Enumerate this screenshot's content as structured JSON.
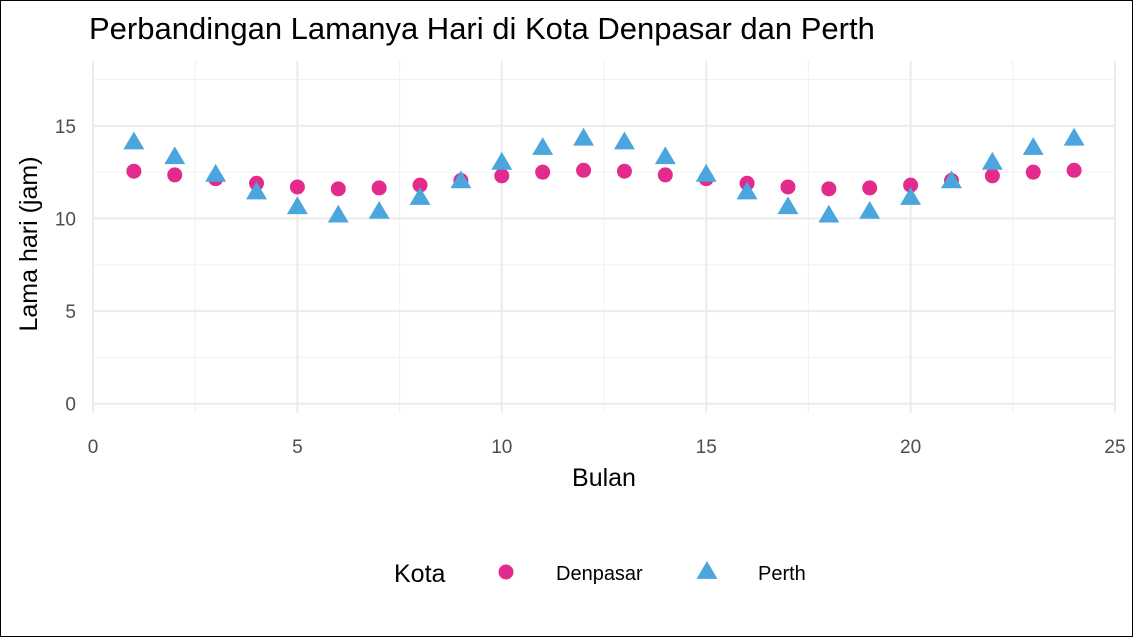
{
  "chart_data": {
    "type": "scatter",
    "title": "Perbandingan Lamanya Hari di Kota Denpasar dan Perth",
    "xlabel": "Bulan",
    "ylabel": "Lama hari (jam)",
    "xlim": [
      0,
      25
    ],
    "ylim": [
      -0.5,
      18.5
    ],
    "x_ticks": [
      0,
      5,
      10,
      15,
      20,
      25
    ],
    "y_ticks": [
      0,
      5,
      10,
      15
    ],
    "grid": true,
    "legend": {
      "title": "Kota",
      "position": "bottom"
    },
    "x": [
      1,
      2,
      3,
      4,
      5,
      6,
      7,
      8,
      9,
      10,
      11,
      12,
      13,
      14,
      15,
      16,
      17,
      18,
      19,
      20,
      21,
      22,
      23,
      24
    ],
    "series": [
      {
        "name": "Denpasar",
        "marker": "circle",
        "color": "#e22b8d",
        "values": [
          12.55,
          12.35,
          12.15,
          11.9,
          11.7,
          11.6,
          11.65,
          11.8,
          12.05,
          12.3,
          12.5,
          12.6,
          12.55,
          12.35,
          12.15,
          11.9,
          11.7,
          11.6,
          11.65,
          11.8,
          12.05,
          12.3,
          12.5,
          12.6
        ]
      },
      {
        "name": "Perth",
        "marker": "triangle",
        "color": "#4aa6dc",
        "values": [
          14.1,
          13.3,
          12.35,
          11.4,
          10.6,
          10.15,
          10.35,
          11.1,
          12.0,
          13.0,
          13.8,
          14.3,
          14.1,
          13.3,
          12.35,
          11.4,
          10.6,
          10.15,
          10.35,
          11.1,
          12.0,
          13.0,
          13.8,
          14.3
        ]
      }
    ]
  }
}
